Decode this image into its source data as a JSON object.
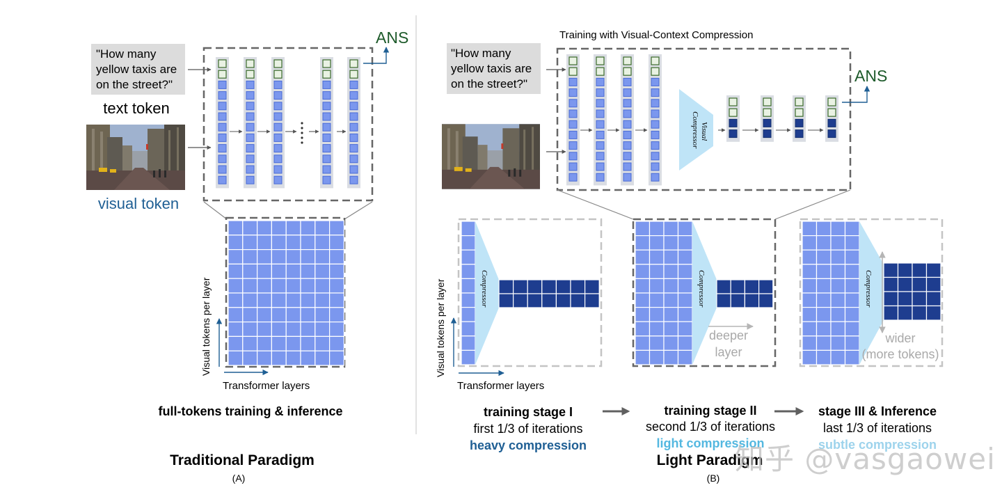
{
  "colors": {
    "visual_token": "#7b97ee",
    "compressed_token": "#1e3d8f",
    "text_token": "#e9f2e3",
    "text_token_border": "#3a6b2a",
    "column_bg": "#dadde3",
    "compressor": "#bfe4f7",
    "dark_blue_text": "#1f5f94",
    "light_blue_text": "#54b8e0",
    "ans_green": "#1d5a2a",
    "dashed": "#666666",
    "light_dashed": "#c4c4c4"
  },
  "left": {
    "question": [
      "\"How many",
      "yellow taxis are",
      "on the street?\""
    ],
    "text_token_label": "text token",
    "visual_token_label": "visual token",
    "ans": "ANS",
    "yaxis_label": "Visual tokens per layer",
    "xaxis_label": "Transformer layers",
    "caption": "full-tokens training & inference",
    "paradigm": "Traditional Paradigm",
    "tag": "(A)"
  },
  "right": {
    "top_title": "Training with Visual-Context Compression",
    "question": [
      "\"How many",
      "yellow taxis are",
      "on the street?\""
    ],
    "ans": "ANS",
    "visual_compressor": [
      "Visual",
      "Compressor"
    ],
    "compressor_label": "Compressor",
    "yaxis_label": "Visual tokens per layer",
    "xaxis_label": "Transformer layers",
    "deeper": [
      "deeper",
      "layer"
    ],
    "wider": [
      "wider",
      "(more tokens)"
    ],
    "stages": [
      {
        "title": "training stage I",
        "sub": "first 1/3 of iterations",
        "mode": "heavy compression"
      },
      {
        "title": "training stage II",
        "sub": "second 1/3 of iterations",
        "mode": "light compression"
      },
      {
        "title": "stage III & Inference",
        "sub": "last 1/3 of iterations",
        "mode": "subtle compression"
      }
    ],
    "paradigm": "Light Paradigm",
    "tag": "(B)"
  },
  "watermark": "知乎 @vasgaowei"
}
